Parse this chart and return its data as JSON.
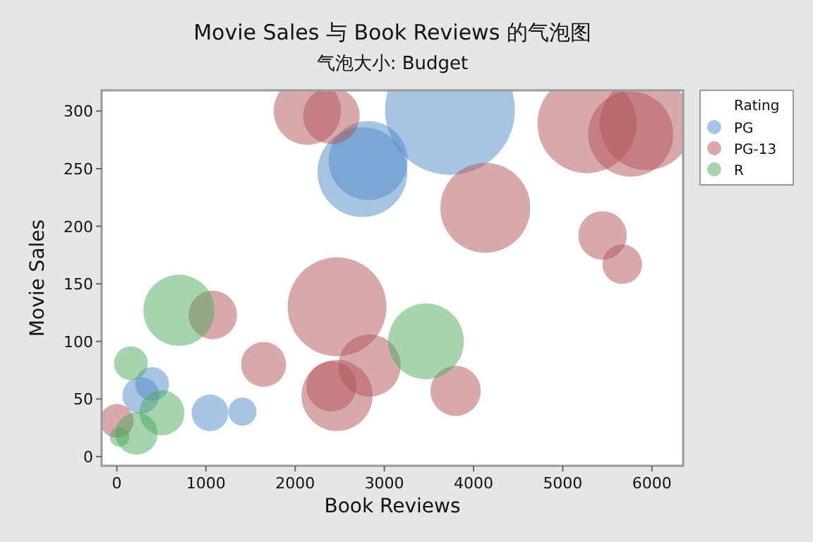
{
  "chart_data": {
    "type": "bubble",
    "title": "Movie Sales 与 Book Reviews 的气泡图",
    "subtitle": "气泡大小: Budget",
    "xlabel": "Book Reviews",
    "ylabel": "Movie Sales",
    "legend_title": "Rating",
    "legend": "top right",
    "grid": false,
    "xlim": [
      -170,
      6350
    ],
    "ylim": [
      -8,
      318
    ],
    "xticks": [
      0,
      1000,
      2000,
      3000,
      4000,
      5000,
      6000
    ],
    "yticks": [
      0,
      50,
      100,
      150,
      200,
      250,
      300
    ],
    "series": [
      {
        "name": "PG",
        "color": "#4f89c5",
        "x": [
          3736,
          2754,
          2818,
          1045,
          1409,
          396,
          269
        ],
        "values": [
          301,
          247,
          257,
          38,
          39,
          63,
          53
        ],
        "sizes": [
          1,
          0.48,
          0.37,
          0.08,
          0.047,
          0.068,
          0.08
        ]
      },
      {
        "name": "PG-13",
        "color": "#b15357",
        "x": [
          2137,
          2406,
          2470,
          2834,
          2470,
          2406,
          1646,
          1076,
          0,
          5271,
          5937,
          5762,
          4132,
          5446,
          5667,
          3799
        ],
        "values": [
          300,
          296,
          130,
          79,
          53,
          61,
          80,
          123,
          31,
          289,
          289,
          280,
          216,
          192,
          167,
          57
        ],
        "sizes": [
          0.27,
          0.19,
          0.58,
          0.23,
          0.3,
          0.15,
          0.12,
          0.14,
          0.068,
          0.58,
          0.51,
          0.43,
          0.48,
          0.14,
          0.093,
          0.15
        ]
      },
      {
        "name": "R",
        "color": "#4ba95d",
        "x": [
          697,
          158,
          507,
          221,
          32,
          3467
        ],
        "values": [
          127,
          81,
          38,
          20,
          17,
          100
        ],
        "sizes": [
          0.3,
          0.068,
          0.12,
          0.106,
          0.023,
          0.34
        ]
      }
    ]
  }
}
